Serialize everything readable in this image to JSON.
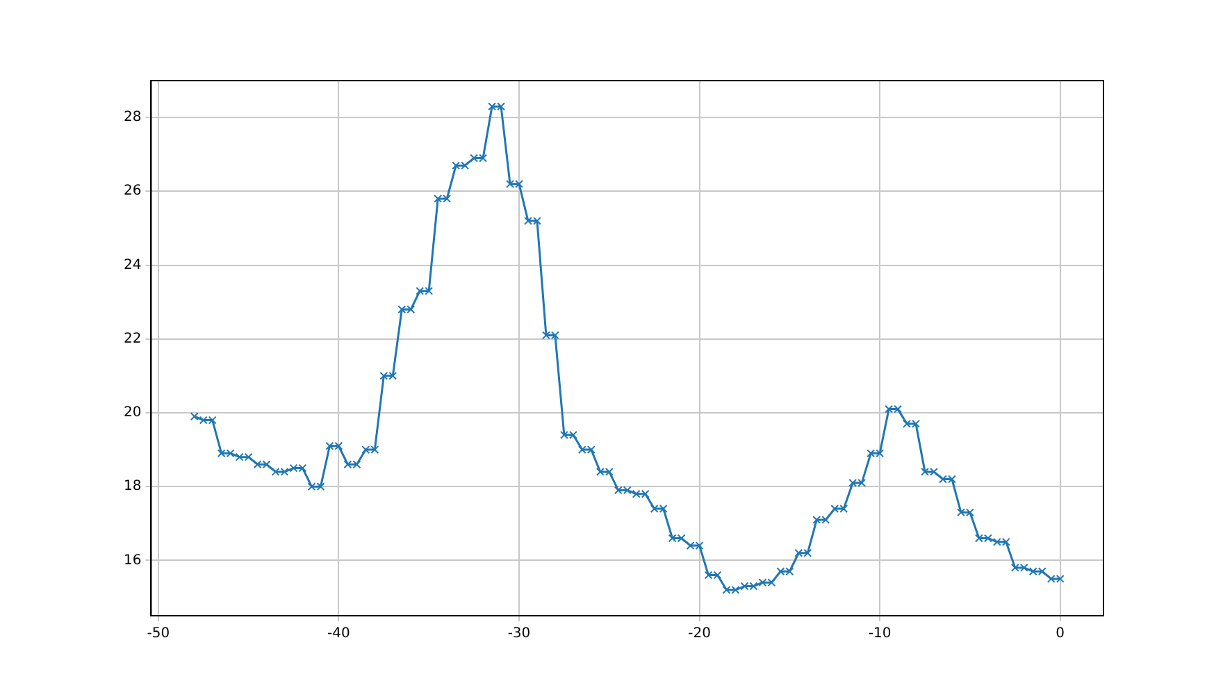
{
  "chart_data": {
    "type": "line",
    "x": [
      -48,
      -47.5,
      -47,
      -46.5,
      -46,
      -45.5,
      -45,
      -44.5,
      -44,
      -43.5,
      -43,
      -42.5,
      -42,
      -41.5,
      -41,
      -40.5,
      -40,
      -39.5,
      -39,
      -38.5,
      -38,
      -37.5,
      -37,
      -36.5,
      -36,
      -35.5,
      -35,
      -34.5,
      -34,
      -33.5,
      -33,
      -32.5,
      -32,
      -31.5,
      -31,
      -30.5,
      -30,
      -29.5,
      -29,
      -28.5,
      -28,
      -27.5,
      -27,
      -26.5,
      -26,
      -25.5,
      -25,
      -24.5,
      -24,
      -23.5,
      -23,
      -22.5,
      -22,
      -21.5,
      -21,
      -20.5,
      -20,
      -19.5,
      -19,
      -18.5,
      -18,
      -17.5,
      -17,
      -16.5,
      -16,
      -15.5,
      -15,
      -14.5,
      -14,
      -13.5,
      -13,
      -12.5,
      -12,
      -11.5,
      -11,
      -10.5,
      -10,
      -9.5,
      -9,
      -8.5,
      -8,
      -7.5,
      -7,
      -6.5,
      -6,
      -5.5,
      -5,
      -4.5,
      -4,
      -3.5,
      -3,
      -2.5,
      -2,
      -1.5,
      -1,
      -0.5,
      0
    ],
    "series": [
      {
        "color": "#1f77b4",
        "values": [
          19.9,
          19.8,
          19.8,
          18.9,
          18.9,
          18.8,
          18.8,
          18.6,
          18.6,
          18.4,
          18.4,
          18.5,
          18.5,
          18.0,
          18.0,
          19.1,
          19.1,
          18.6,
          18.6,
          19.0,
          19.0,
          21.0,
          21.0,
          22.8,
          22.8,
          23.3,
          23.3,
          25.8,
          25.8,
          26.7,
          26.7,
          26.9,
          26.9,
          28.3,
          28.3,
          26.2,
          26.2,
          25.2,
          25.2,
          22.1,
          22.1,
          19.4,
          19.4,
          19.0,
          19.0,
          18.4,
          18.4,
          17.9,
          17.9,
          17.8,
          17.8,
          17.4,
          17.4,
          16.6,
          16.6,
          16.4,
          16.4,
          15.6,
          15.6,
          15.2,
          15.2,
          15.3,
          15.3,
          15.4,
          15.4,
          15.7,
          15.7,
          16.2,
          16.2,
          17.1,
          17.1,
          17.4,
          17.4,
          18.1,
          18.1,
          18.9,
          18.9,
          20.1,
          20.1,
          19.7,
          19.7,
          18.4,
          18.4,
          18.2,
          18.2,
          17.3,
          17.3,
          16.6,
          16.6,
          16.5,
          16.5,
          15.8,
          15.8,
          15.7,
          15.7,
          15.5,
          15.5
        ]
      }
    ],
    "xlim": [
      -50.4,
      2.4
    ],
    "xticks": [
      -50,
      -40,
      -30,
      -20,
      -10,
      0
    ],
    "ylim": [
      14.5,
      29.0
    ],
    "yticks": [
      16,
      18,
      20,
      22,
      24,
      26,
      28
    ],
    "grid": true,
    "marker": "cross",
    "line_style": "solid",
    "legend": false
  }
}
